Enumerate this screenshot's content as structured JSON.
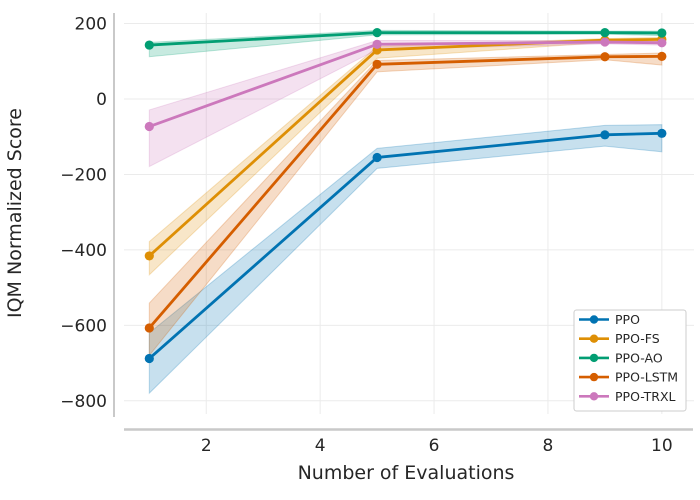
{
  "figure": {
    "background": "#ffffff",
    "text_color": "#262626",
    "spine_color": "#c9c9c9",
    "grid_color": "#ebebeb",
    "legend_border_color": "#cccccc",
    "legend_background": "#ffffff"
  },
  "chart_data": {
    "type": "line",
    "title": "",
    "xlabel": "Number of Evaluations",
    "ylabel": "IQM Normalized Score",
    "x": [
      1,
      5,
      9,
      10
    ],
    "xticks": [
      2,
      4,
      6,
      8,
      10
    ],
    "yticks": [
      200,
      0,
      -200,
      -400,
      -600,
      -800
    ],
    "xlim": [
      0.55,
      10.6
    ],
    "ylim": [
      -837,
      228
    ],
    "grid": true,
    "legend_position": "lower right",
    "band_style": "shaded confidence interval, alpha 0.22",
    "series": [
      {
        "name": "PPO",
        "color": "#0173b2",
        "values": [
          -688,
          -155,
          -95,
          -91
        ],
        "band_lower": [
          -780,
          -184,
          -125,
          -140
        ],
        "band_upper": [
          -620,
          -131,
          -70,
          -68
        ]
      },
      {
        "name": "PPO-FS",
        "color": "#de8f05",
        "values": [
          -416,
          130,
          156,
          158
        ],
        "band_lower": [
          -466,
          108,
          150,
          152
        ],
        "band_upper": [
          -378,
          139,
          160,
          163
        ]
      },
      {
        "name": "PPO-AO",
        "color": "#029e73",
        "values": [
          143,
          176,
          176,
          175
        ],
        "band_lower": [
          112,
          170,
          172,
          168
        ],
        "band_upper": [
          150,
          182,
          180,
          180
        ]
      },
      {
        "name": "PPO-LSTM",
        "color": "#d55e00",
        "values": [
          -607,
          92,
          112,
          113
        ],
        "band_lower": [
          -680,
          72,
          104,
          90
        ],
        "band_upper": [
          -541,
          102,
          118,
          122
        ]
      },
      {
        "name": "PPO-TRXL",
        "color": "#cc78bc",
        "values": [
          -73,
          145,
          151,
          149
        ],
        "band_lower": [
          -179,
          131,
          146,
          143
        ],
        "band_upper": [
          -29,
          155,
          155,
          154
        ]
      }
    ]
  }
}
